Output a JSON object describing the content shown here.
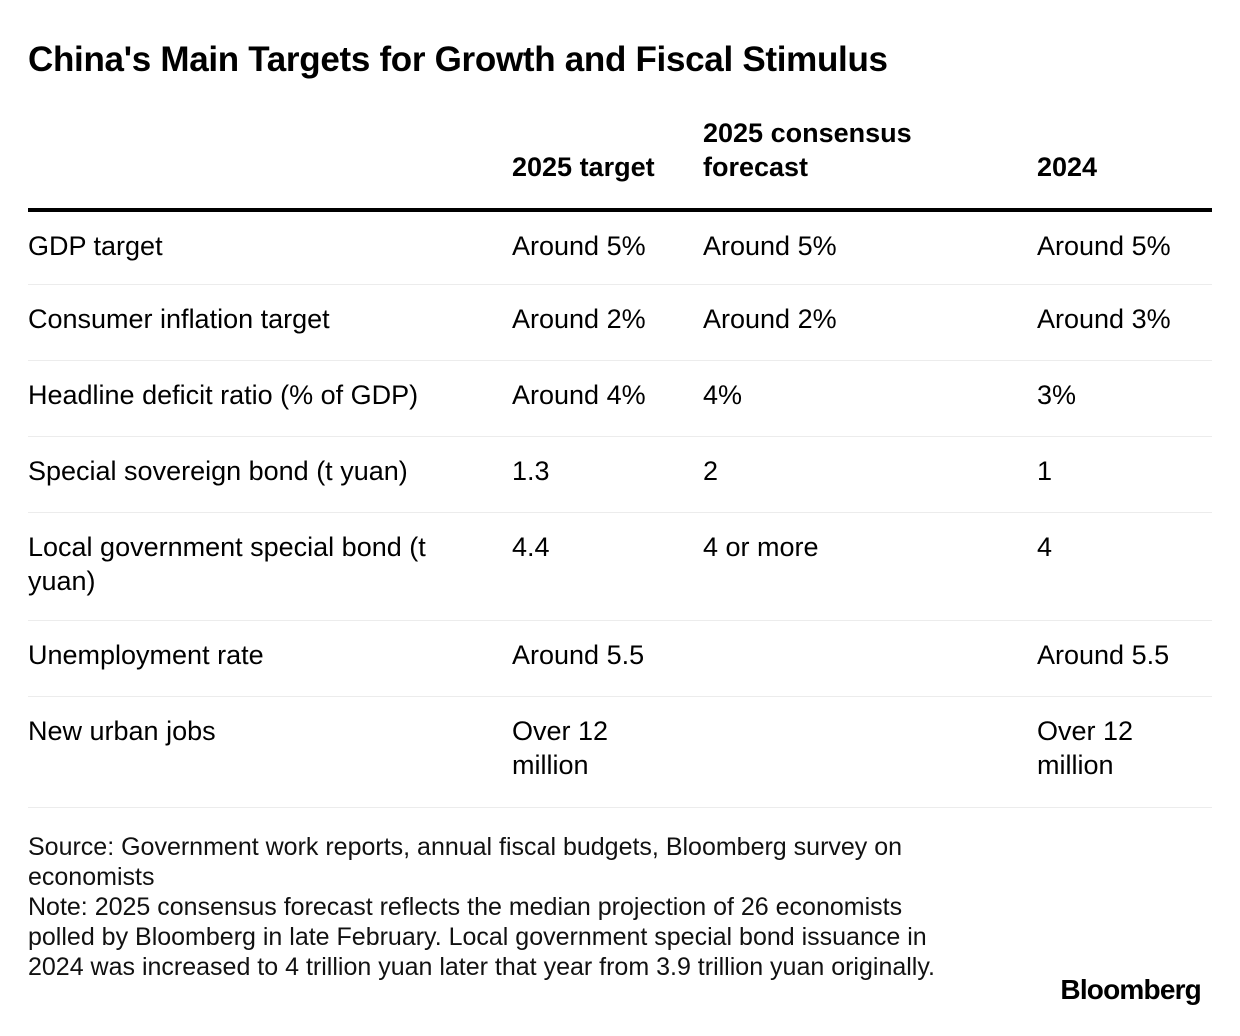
{
  "chart_data": {
    "type": "table",
    "title": "China's Main Targets for Growth and Fiscal Stimulus",
    "columns": [
      "",
      "2025 target",
      "2025 consensus forecast",
      "2024"
    ],
    "rows": [
      {
        "label": "GDP target",
        "values": [
          "Around 5%",
          "Around 5%",
          "Around 5%"
        ]
      },
      {
        "label": "Consumer inflation target",
        "values": [
          "Around 2%",
          "Around 2%",
          "Around 3%"
        ]
      },
      {
        "label": "Headline deficit ratio (% of GDP)",
        "values": [
          "Around 4%",
          "4%",
          "3%"
        ]
      },
      {
        "label": "Special sovereign bond (t yuan)",
        "values": [
          "1.3",
          "2",
          "1"
        ]
      },
      {
        "label": "Local government special bond (t yuan)",
        "values": [
          "4.4",
          "4 or more",
          "4"
        ]
      },
      {
        "label": "Unemployment rate",
        "values": [
          "Around 5.5",
          "",
          "Around 5.5"
        ]
      },
      {
        "label": "New urban jobs",
        "values": [
          "Over 12 million",
          "",
          "Over 12 million"
        ]
      }
    ],
    "source": "Source: Government work reports, annual fiscal budgets, Bloomberg survey on economists",
    "note": "Note: 2025 consensus forecast reflects the median projection of 26 economists polled by Bloomberg in late February. Local government special bond issuance in 2024 was increased to 4 trillion yuan later that year from 3.9 trillion yuan originally."
  },
  "branding": {
    "logo_text": "Bloomberg"
  }
}
